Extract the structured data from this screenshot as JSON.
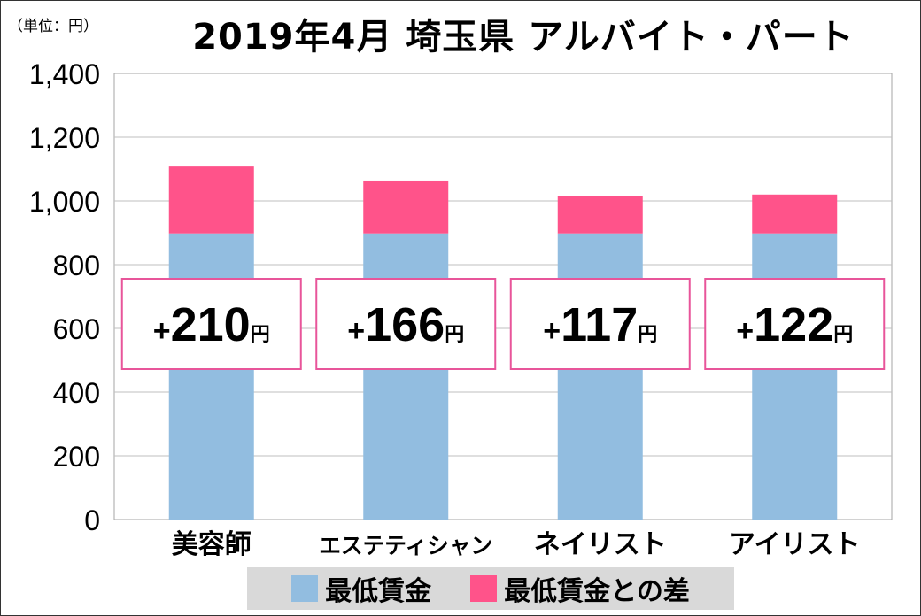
{
  "title": "2019年4月 埼玉県 アルバイト・パート",
  "unit_label": "（単位：円）",
  "colors": {
    "base": "#92bde0",
    "diff": "#ff538a",
    "callout_border": "#e8559a",
    "grid": "#bfbfbf"
  },
  "legend": [
    {
      "label": "最低賃金",
      "color": "#92bde0"
    },
    {
      "label": "最低賃金との差",
      "color": "#ff538a"
    }
  ],
  "chart_data": {
    "type": "bar",
    "stacked": true,
    "categories": [
      "美容師",
      "エステティシャン",
      "ネイリスト",
      "アイリスト"
    ],
    "series": [
      {
        "name": "最低賃金",
        "values": [
          898,
          898,
          898,
          898
        ]
      },
      {
        "name": "最低賃金との差",
        "values": [
          210,
          166,
          117,
          122
        ]
      }
    ],
    "annotations": [
      {
        "sign": "+",
        "value": "210",
        "unit": "円"
      },
      {
        "sign": "+",
        "value": "166",
        "unit": "円"
      },
      {
        "sign": "+",
        "value": "117",
        "unit": "円"
      },
      {
        "sign": "+",
        "value": "122",
        "unit": "円"
      }
    ],
    "yticks": [
      "0",
      "200",
      "400",
      "600",
      "800",
      "1,000",
      "1,200",
      "1,400"
    ],
    "ylim": [
      0,
      1400
    ],
    "grid": true,
    "legend_position": "bottom"
  }
}
